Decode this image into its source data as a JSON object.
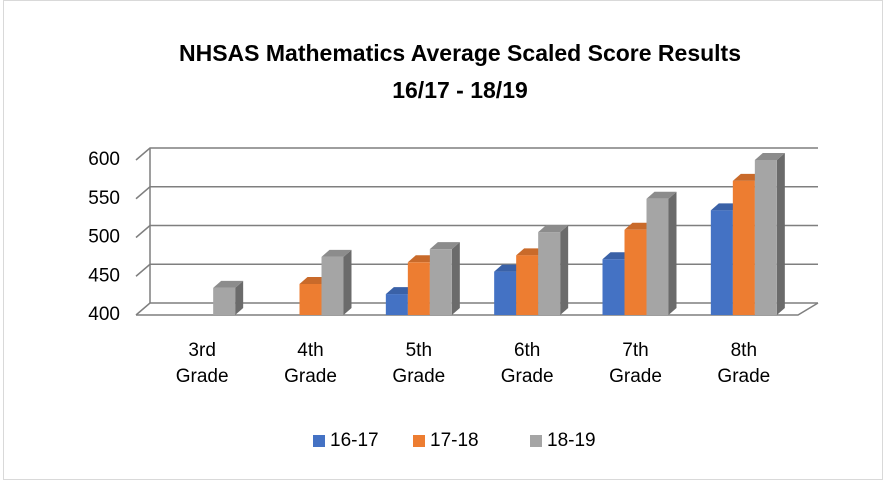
{
  "chart_data": {
    "type": "bar3d",
    "title": "NHSAS Mathematics Average Scaled Score Results",
    "subtitle": "16/17 - 18/19",
    "categories": [
      "3rd Grade",
      "4th Grade",
      "5th Grade",
      "6th Grade",
      "7th Grade",
      "8th Grade"
    ],
    "series": [
      {
        "name": "16-17",
        "color": "#4472c4",
        "values": [
          null,
          null,
          427,
          456,
          472,
          535
        ]
      },
      {
        "name": "17-18",
        "color": "#ed7d31",
        "values": [
          null,
          440,
          468,
          477,
          510,
          573
        ]
      },
      {
        "name": "18-19",
        "color": "#a5a5a5",
        "values": [
          435,
          475,
          485,
          507,
          550,
          600
        ]
      }
    ],
    "ylim": [
      400,
      600
    ],
    "yticks": [
      400,
      450,
      500,
      550,
      600
    ],
    "grid": true,
    "legend": "bottom"
  }
}
